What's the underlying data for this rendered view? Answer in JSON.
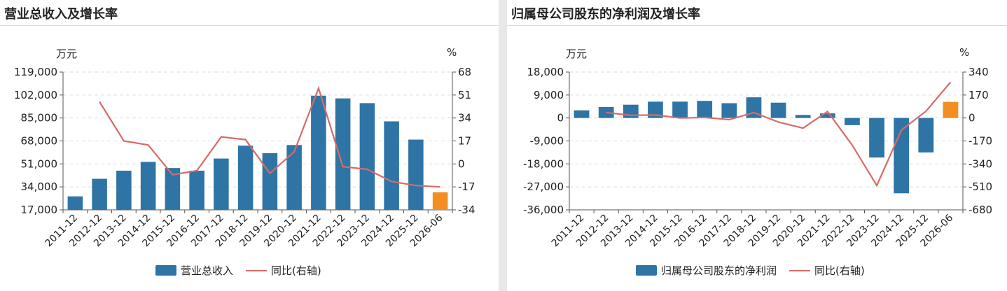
{
  "colors": {
    "bar": "#2e75a6",
    "forecast_bar": "#f28e22",
    "line": "#d76b67",
    "grid": "#dddddd",
    "axis": "#555555"
  },
  "chart_data": [
    {
      "type": "bar",
      "title": "营业总收入及增长率",
      "left_unit": "万元",
      "right_unit": "%",
      "categories": [
        "2011-12",
        "2012-12",
        "2013-12",
        "2014-12",
        "2015-12",
        "2016-12",
        "2017-12",
        "2018-12",
        "2019-12",
        "2020-12",
        "2021-12",
        "2022-12",
        "2023-12",
        "2024-12",
        "2025-12",
        "2026-06"
      ],
      "series": [
        {
          "name": "营业总收入",
          "axis": "left",
          "values": [
            27000,
            40000,
            46000,
            52500,
            48000,
            46000,
            55000,
            64500,
            59000,
            65000,
            101500,
            99500,
            96000,
            82500,
            69000,
            30000
          ],
          "highlight_last": true
        },
        {
          "name": "同比(右轴)",
          "type": "line",
          "axis": "right",
          "values": [
            null,
            46,
            17,
            14,
            -8,
            -5,
            20,
            18,
            -7,
            9,
            56,
            -2,
            -4,
            -13,
            -16,
            -17
          ]
        }
      ],
      "left_ticks": [
        "119,000",
        "102,000",
        "85,000",
        "68,000",
        "51,000",
        "34,000",
        "17,000"
      ],
      "right_ticks": [
        "68",
        "51",
        "34",
        "17",
        "0",
        "-17",
        "-34"
      ],
      "left_ylim": [
        17000,
        119000
      ],
      "right_ylim": [
        -34,
        68
      ]
    },
    {
      "type": "bar",
      "title": "归属母公司股东的净利润及增长率",
      "left_unit": "万元",
      "right_unit": "%",
      "categories": [
        "2011-12",
        "2012-12",
        "2013-12",
        "2014-12",
        "2015-12",
        "2016-12",
        "2017-12",
        "2018-12",
        "2019-12",
        "2020-12",
        "2021-12",
        "2022-12",
        "2023-12",
        "2024-12",
        "2025-12",
        "2026-06"
      ],
      "series": [
        {
          "name": "归属母公司股东的净利润",
          "axis": "left",
          "values": [
            3000,
            4300,
            5200,
            6400,
            6400,
            6700,
            5800,
            8100,
            6000,
            1200,
            1800,
            -2800,
            -15500,
            -29500,
            -13500,
            6300
          ],
          "highlight_last": true
        },
        {
          "name": "同比(右轴)",
          "type": "line",
          "axis": "right",
          "values": [
            null,
            40,
            20,
            22,
            0,
            4,
            -12,
            40,
            -30,
            -75,
            48,
            -200,
            -500,
            -90,
            50,
            265
          ]
        }
      ],
      "left_ticks": [
        "18,000",
        "9,000",
        "0",
        "-9,000",
        "-18,000",
        "-27,000",
        "-36,000"
      ],
      "right_ticks": [
        "340",
        "170",
        "0",
        "-170",
        "-340",
        "-510",
        "-680"
      ],
      "left_ylim": [
        -36000,
        18000
      ],
      "right_ylim": [
        -680,
        340
      ]
    }
  ]
}
